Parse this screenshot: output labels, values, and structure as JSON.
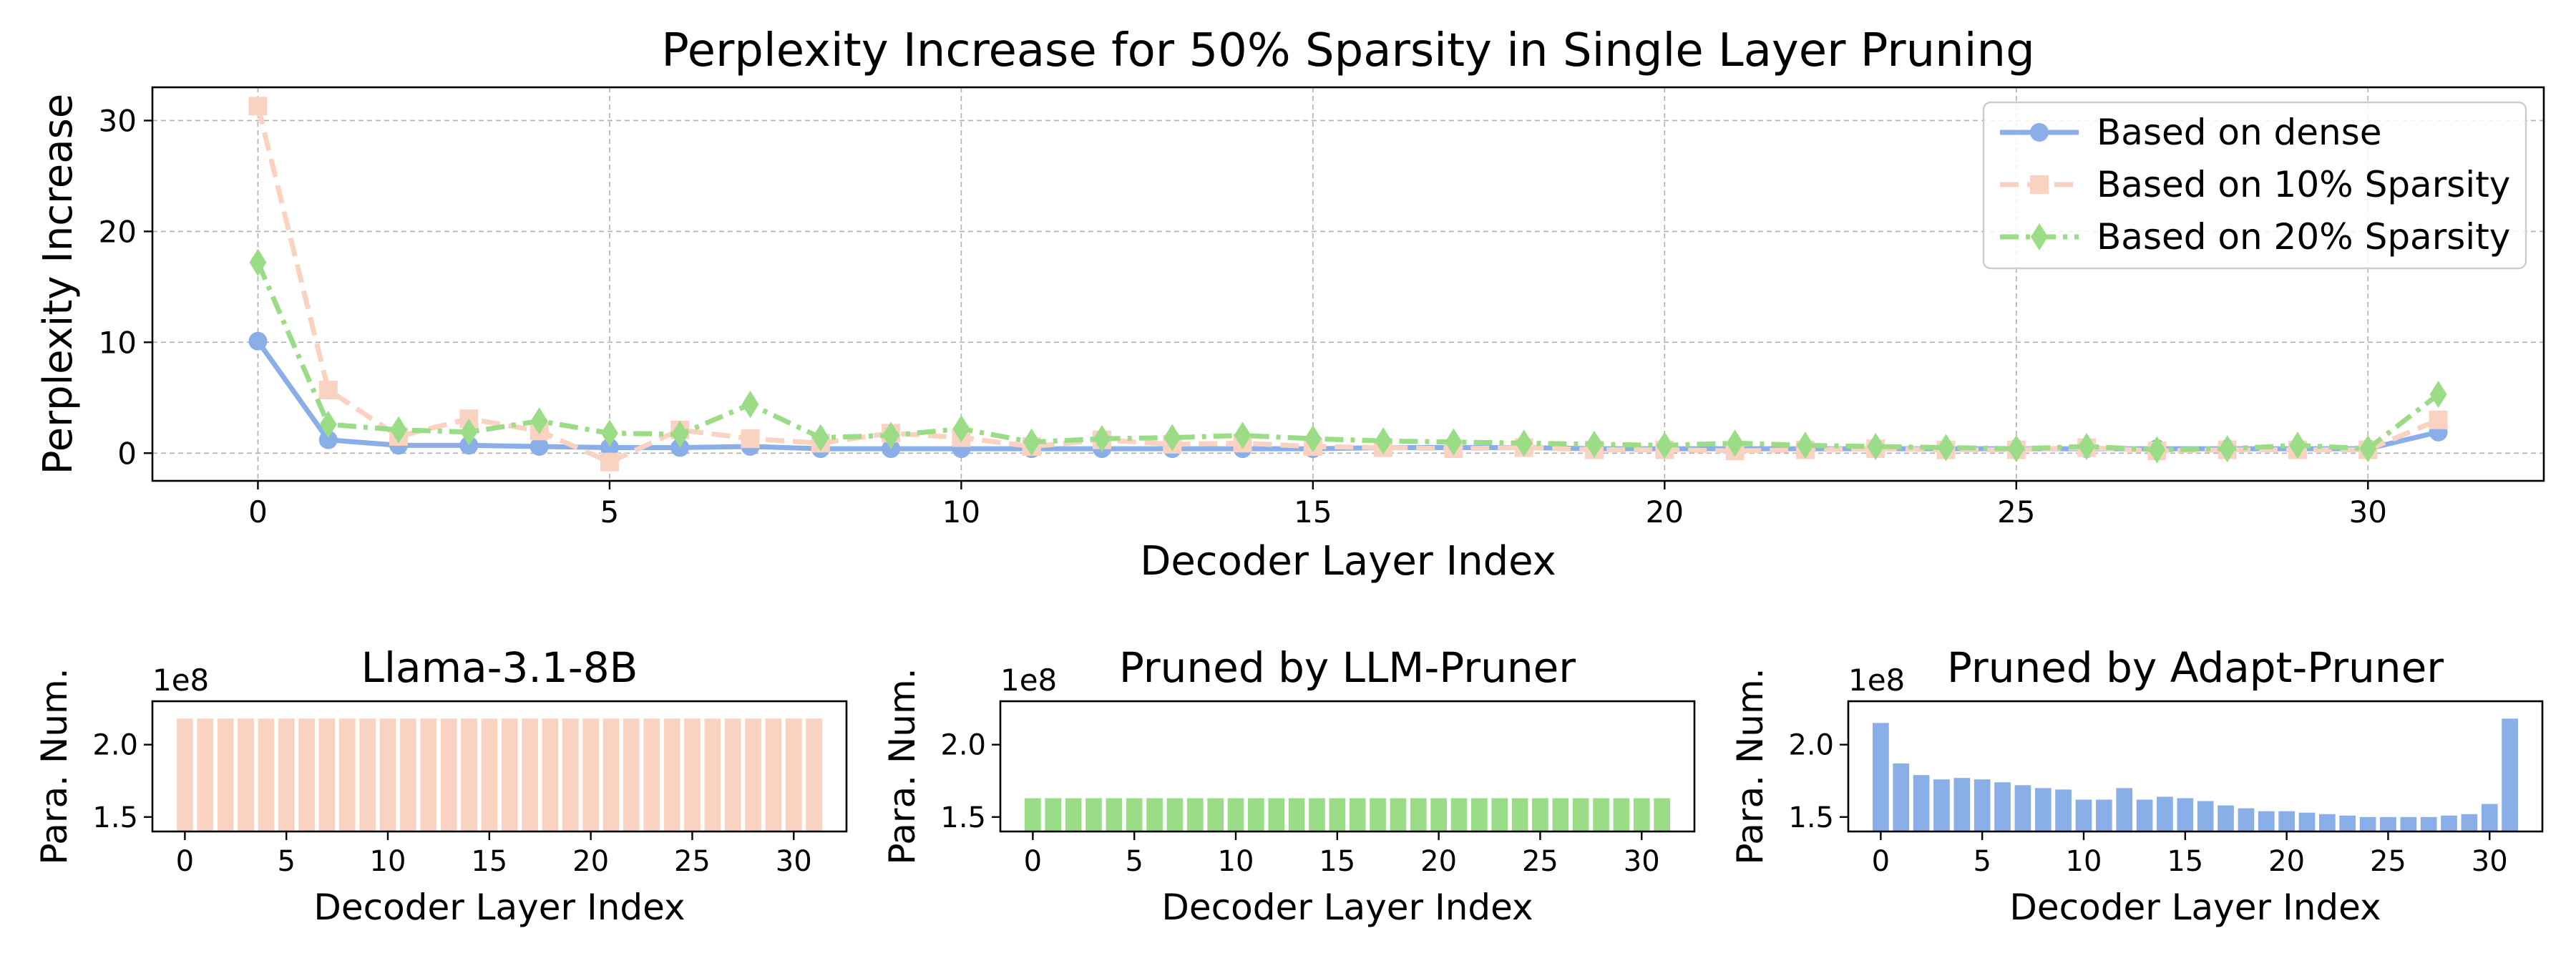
{
  "chart_data": [
    {
      "type": "line",
      "title": "Perplexity Increase for 50% Sparsity in Single Layer Pruning",
      "xlabel": "Decoder Layer Index",
      "ylabel": "Perplexity Increase",
      "xlim": [
        -1.5,
        32.5
      ],
      "ylim": [
        -2.5,
        33
      ],
      "xticks": [
        0,
        5,
        10,
        15,
        20,
        25,
        30
      ],
      "yticks": [
        0,
        10,
        20,
        30
      ],
      "grid": true,
      "legend_position": "top-right",
      "x": [
        0,
        1,
        2,
        3,
        4,
        5,
        6,
        7,
        8,
        9,
        10,
        11,
        12,
        13,
        14,
        15,
        16,
        17,
        18,
        19,
        20,
        21,
        22,
        23,
        24,
        25,
        26,
        27,
        28,
        29,
        30,
        31
      ],
      "series": [
        {
          "name": "Based on dense",
          "color": "#8aaee8",
          "marker": "circle",
          "dash": "solid",
          "values": [
            10.1,
            1.2,
            0.7,
            0.7,
            0.6,
            0.5,
            0.5,
            0.6,
            0.4,
            0.4,
            0.4,
            0.4,
            0.4,
            0.4,
            0.4,
            0.4,
            0.5,
            0.5,
            0.5,
            0.4,
            0.4,
            0.4,
            0.4,
            0.4,
            0.4,
            0.4,
            0.4,
            0.4,
            0.4,
            0.4,
            0.4,
            1.9
          ]
        },
        {
          "name": "Based on 10% Sparsity",
          "color": "#f9d2c2",
          "marker": "square",
          "dash": "dashed",
          "values": [
            31.3,
            5.7,
            1.5,
            3.1,
            2.0,
            -0.8,
            2.1,
            1.3,
            0.9,
            1.8,
            1.4,
            0.6,
            1.2,
            0.8,
            0.9,
            0.6,
            0.5,
            0.4,
            0.5,
            0.3,
            0.3,
            0.2,
            0.3,
            0.4,
            0.3,
            0.3,
            0.5,
            0.2,
            0.3,
            0.3,
            0.3,
            3.0
          ]
        },
        {
          "name": "Based on 20% Sparsity",
          "color": "#9bdd86",
          "marker": "diamond",
          "dash": "dashdot",
          "values": [
            17.2,
            2.6,
            2.1,
            1.9,
            2.9,
            1.8,
            1.7,
            4.4,
            1.4,
            1.6,
            2.2,
            1.0,
            1.3,
            1.4,
            1.6,
            1.3,
            1.1,
            1.0,
            0.9,
            0.8,
            0.7,
            0.9,
            0.7,
            0.6,
            0.5,
            0.4,
            0.6,
            0.3,
            0.4,
            0.7,
            0.4,
            5.3
          ]
        }
      ]
    },
    {
      "type": "bar",
      "title": "Llama-3.1-8B",
      "xlabel": "Decoder Layer Index",
      "ylabel": "Para. Num.",
      "offset_label": "1e8",
      "color": "#f9d2c2",
      "ylim": [
        1.4,
        2.3
      ],
      "yticks": [
        1.5,
        2.0
      ],
      "xticks": [
        0,
        5,
        10,
        15,
        20,
        25,
        30
      ],
      "values": [
        2.18,
        2.18,
        2.18,
        2.18,
        2.18,
        2.18,
        2.18,
        2.18,
        2.18,
        2.18,
        2.18,
        2.18,
        2.18,
        2.18,
        2.18,
        2.18,
        2.18,
        2.18,
        2.18,
        2.18,
        2.18,
        2.18,
        2.18,
        2.18,
        2.18,
        2.18,
        2.18,
        2.18,
        2.18,
        2.18,
        2.18,
        2.18
      ]
    },
    {
      "type": "bar",
      "title": "Pruned by LLM-Pruner",
      "xlabel": "Decoder Layer Index",
      "ylabel": "Para. Num.",
      "offset_label": "1e8",
      "color": "#9bdd86",
      "ylim": [
        1.4,
        2.3
      ],
      "yticks": [
        1.5,
        2.0
      ],
      "xticks": [
        0,
        5,
        10,
        15,
        20,
        25,
        30
      ],
      "values": [
        1.63,
        1.63,
        1.63,
        1.63,
        1.63,
        1.63,
        1.63,
        1.63,
        1.63,
        1.63,
        1.63,
        1.63,
        1.63,
        1.63,
        1.63,
        1.63,
        1.63,
        1.63,
        1.63,
        1.63,
        1.63,
        1.63,
        1.63,
        1.63,
        1.63,
        1.63,
        1.63,
        1.63,
        1.63,
        1.63,
        1.63,
        1.63
      ]
    },
    {
      "type": "bar",
      "title": "Pruned by Adapt-Pruner",
      "xlabel": "Decoder Layer Index",
      "ylabel": "Para. Num.",
      "offset_label": "1e8",
      "color": "#8aaee8",
      "ylim": [
        1.4,
        2.3
      ],
      "yticks": [
        1.5,
        2.0
      ],
      "xticks": [
        0,
        5,
        10,
        15,
        20,
        25,
        30
      ],
      "values": [
        2.15,
        1.87,
        1.79,
        1.76,
        1.77,
        1.76,
        1.74,
        1.72,
        1.7,
        1.69,
        1.62,
        1.62,
        1.7,
        1.62,
        1.64,
        1.63,
        1.61,
        1.58,
        1.56,
        1.54,
        1.54,
        1.53,
        1.52,
        1.51,
        1.5,
        1.5,
        1.5,
        1.5,
        1.51,
        1.52,
        1.59,
        2.18
      ]
    }
  ]
}
